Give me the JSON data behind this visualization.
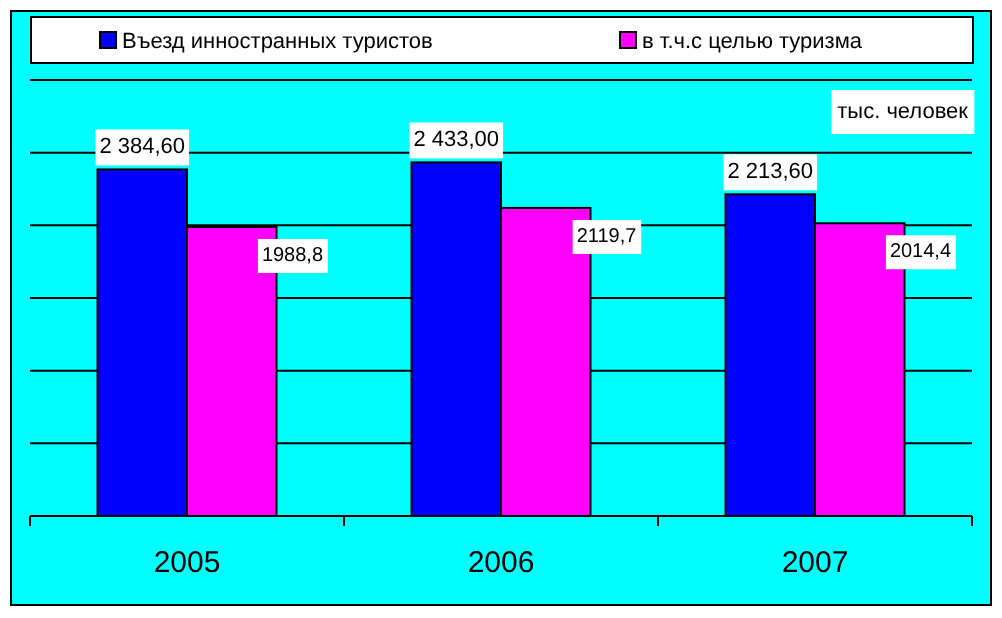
{
  "chart_data": {
    "type": "bar",
    "categories": [
      "2005",
      "2006",
      "2007"
    ],
    "series": [
      {
        "name": "Въезд инностранных туристов",
        "color": "#0000ff",
        "values": [
          2384.6,
          2433.0,
          2213.6
        ],
        "value_labels": [
          "2 384,60",
          "2 433,00",
          "2 213,60"
        ]
      },
      {
        "name": "в т.ч.с целью туризма",
        "color": "#ff00ff",
        "values": [
          1988.8,
          2119.7,
          2014.4
        ],
        "value_labels": [
          "1988,8",
          "2119,7",
          "2014,4"
        ]
      }
    ],
    "ylim": [
      0,
      3000
    ],
    "yticks": [
      {
        "value": 0,
        "label": null
      },
      {
        "value": 500,
        "label": null
      },
      {
        "value": 1000,
        "label": null
      },
      {
        "value": 1500,
        "label": null
      },
      {
        "value": 2000,
        "label": null
      },
      {
        "value": 2500,
        "label": null
      },
      {
        "value": 3000,
        "label": null
      }
    ],
    "grid": "y",
    "legend": "top",
    "tick_labels": "x",
    "annotations": [
      "тыс. человек"
    ]
  }
}
